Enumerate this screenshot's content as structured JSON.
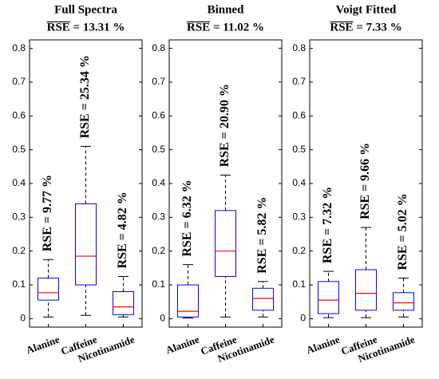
{
  "chart_data": [
    {
      "type": "box",
      "title": "Full Spectra",
      "subtitle": "RSE = 13.31 %",
      "categories": [
        "Alanine",
        "Caffeine",
        "Nicotinamide"
      ],
      "boxes": [
        {
          "low": 0.005,
          "q1": 0.055,
          "median": 0.077,
          "q3": 0.12,
          "high": 0.175
        },
        {
          "low": 0.01,
          "q1": 0.1,
          "median": 0.185,
          "q3": 0.34,
          "high": 0.51
        },
        {
          "low": 0.005,
          "q1": 0.012,
          "median": 0.035,
          "q3": 0.08,
          "high": 0.125
        }
      ],
      "annotations": [
        "RSE = 9.77 %",
        "RSE = 25.34 %",
        "RSE = 4.82 %"
      ],
      "box_color": "#0000ff",
      "median_color": "#ff0000",
      "whisker_color": "#000000",
      "ylim": [
        -0.025,
        0.825
      ],
      "yticks": [
        0,
        0.1,
        0.2,
        0.3,
        0.4,
        0.5,
        0.6,
        0.7,
        0.8
      ]
    },
    {
      "type": "box",
      "title": "Binned",
      "subtitle": "RSE = 11.02 %",
      "categories": [
        "Alanine",
        "Caffeine",
        "Nicotinamide"
      ],
      "boxes": [
        {
          "low": 0.002,
          "q1": 0.005,
          "median": 0.022,
          "q3": 0.1,
          "high": 0.16
        },
        {
          "low": 0.005,
          "q1": 0.125,
          "median": 0.2,
          "q3": 0.32,
          "high": 0.425
        },
        {
          "low": 0.005,
          "q1": 0.025,
          "median": 0.06,
          "q3": 0.09,
          "high": 0.11
        }
      ],
      "annotations": [
        "RSE = 6.32 %",
        "RSE = 20.90 %",
        "RSE = 5.82 %"
      ],
      "box_color": "#0000ff",
      "median_color": "#ff0000",
      "whisker_color": "#000000",
      "ylim": [
        -0.025,
        0.825
      ],
      "yticks": [
        0,
        0.1,
        0.2,
        0.3,
        0.4,
        0.5,
        0.6,
        0.7,
        0.8
      ]
    },
    {
      "type": "box",
      "title": "Voigt Fitted",
      "subtitle": "RSE = 7.33 %",
      "categories": [
        "Alanine",
        "Caffeine",
        "Nicotinamide"
      ],
      "boxes": [
        {
          "low": 0.003,
          "q1": 0.015,
          "median": 0.055,
          "q3": 0.11,
          "high": 0.14
        },
        {
          "low": 0.003,
          "q1": 0.025,
          "median": 0.075,
          "q3": 0.145,
          "high": 0.27
        },
        {
          "low": 0.005,
          "q1": 0.025,
          "median": 0.047,
          "q3": 0.077,
          "high": 0.12
        }
      ],
      "annotations": [
        "RSE = 7.32 %",
        "RSE = 9.66 %",
        "RSE = 5.02 %"
      ],
      "box_color": "#0000ff",
      "median_color": "#ff0000",
      "whisker_color": "#000000",
      "ylim": [
        -0.025,
        0.825
      ],
      "yticks": [
        0,
        0.1,
        0.2,
        0.3,
        0.4,
        0.5,
        0.6,
        0.7,
        0.8
      ]
    }
  ]
}
